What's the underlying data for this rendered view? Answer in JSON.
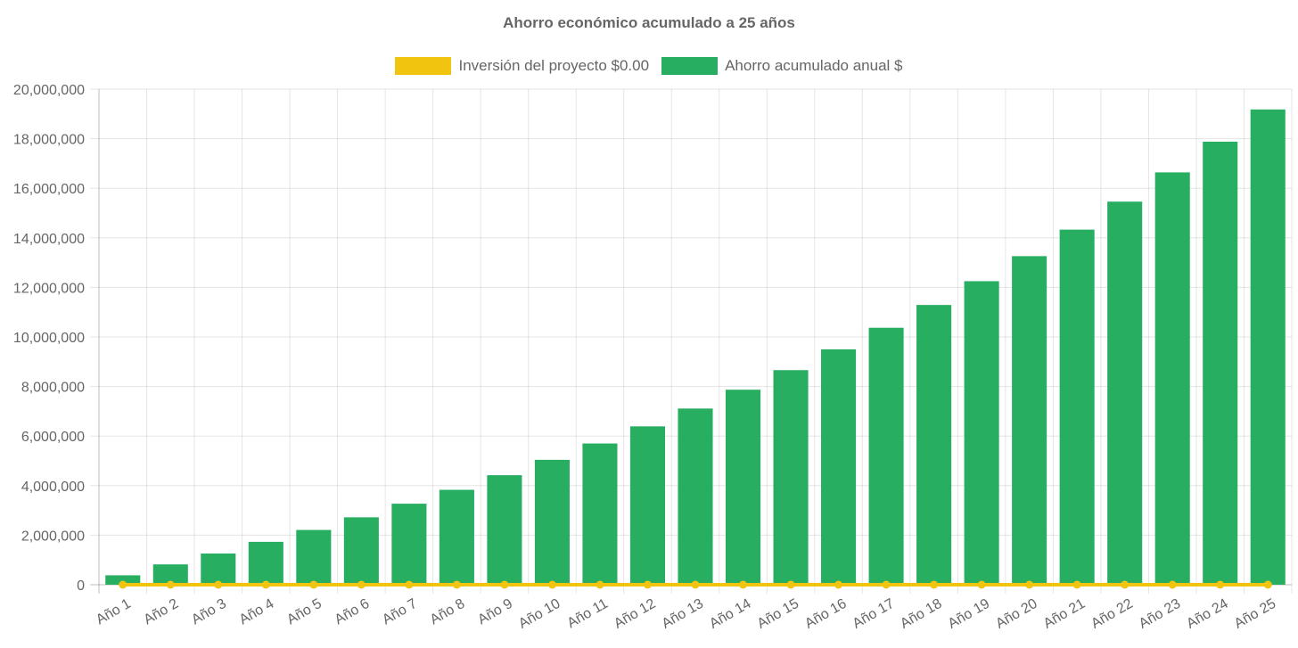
{
  "chart_data": {
    "type": "bar",
    "title": "Ahorro económico acumulado a 25 años",
    "xlabel": "",
    "ylabel": "",
    "categories": [
      "Año 1",
      "Año 2",
      "Año 3",
      "Año 4",
      "Año 5",
      "Año 6",
      "Año 7",
      "Año 8",
      "Año 9",
      "Año 10",
      "Año 11",
      "Año 12",
      "Año 13",
      "Año 14",
      "Año 15",
      "Año 16",
      "Año 17",
      "Año 18",
      "Año 19",
      "Año 20",
      "Año 21",
      "Año 22",
      "Año 23",
      "Año 24",
      "Año 25"
    ],
    "series": [
      {
        "name": "Inversión del proyecto $0.00",
        "type": "line",
        "color": "#f1c40f",
        "values": [
          0,
          0,
          0,
          0,
          0,
          0,
          0,
          0,
          0,
          0,
          0,
          0,
          0,
          0,
          0,
          0,
          0,
          0,
          0,
          0,
          0,
          0,
          0,
          0,
          0
        ]
      },
      {
        "name": "Ahorro acumulado anual $",
        "type": "bar",
        "color": "#27ae60",
        "values": [
          380000,
          820000,
          1260000,
          1730000,
          2210000,
          2720000,
          3270000,
          3830000,
          4420000,
          5040000,
          5700000,
          6390000,
          7110000,
          7870000,
          8660000,
          9500000,
          10370000,
          11290000,
          12250000,
          13260000,
          14330000,
          15460000,
          16640000,
          17880000,
          19180000
        ]
      }
    ],
    "ylim": [
      0,
      20000000
    ],
    "yticks": [
      "0",
      "2,000,000",
      "4,000,000",
      "6,000,000",
      "8,000,000",
      "10,000,000",
      "12,000,000",
      "14,000,000",
      "16,000,000",
      "18,000,000",
      "20,000,000"
    ],
    "grid": true,
    "legend_position": "top"
  }
}
